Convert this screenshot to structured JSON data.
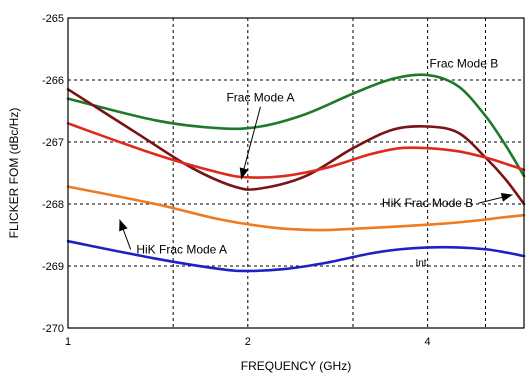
{
  "chart_data": {
    "type": "line",
    "title": "",
    "xlabel": "FREQUENCY (GHz)",
    "ylabel": "FLICKER FOM (dBc/Hz)",
    "x_ticks": [
      {
        "label": "1",
        "value": 1
      },
      {
        "label": "2",
        "value": 2
      },
      {
        "label": "4",
        "value": 4
      }
    ],
    "xlim": [
      1,
      5.8
    ],
    "y_ticks": [
      {
        "label": "-265",
        "value": -265
      },
      {
        "label": "-266",
        "value": -266
      },
      {
        "label": "-267",
        "value": -267
      },
      {
        "label": "-268",
        "value": -268
      },
      {
        "label": "-269",
        "value": -269
      },
      {
        "label": "-270",
        "value": -270
      }
    ],
    "ylim": [
      -270,
      -265
    ],
    "grid": true,
    "series": [
      {
        "name": "Frac Mode B",
        "color": "#1e7a2a",
        "x": [
          1.0,
          1.4,
          1.8,
          2.1,
          2.5,
          3.0,
          3.5,
          4.0,
          4.5,
          5.0,
          5.4,
          5.8
        ],
        "y": [
          -266.3,
          -266.65,
          -266.78,
          -266.75,
          -266.55,
          -266.22,
          -265.98,
          -265.92,
          -266.1,
          -266.58,
          -267.05,
          -267.55
        ]
      },
      {
        "name": "",
        "color": "#7a1414",
        "x": [
          1.0,
          1.3,
          1.6,
          1.9,
          2.1,
          2.5,
          3.0,
          3.5,
          4.0,
          4.5,
          5.0,
          5.4,
          5.8
        ],
        "y": [
          -266.15,
          -266.85,
          -267.4,
          -267.72,
          -267.75,
          -267.55,
          -267.1,
          -266.8,
          -266.75,
          -266.85,
          -267.25,
          -267.6,
          -268.0
        ]
      },
      {
        "name": "Frac Mode A",
        "color": "#dd2a1c",
        "x": [
          1.0,
          1.4,
          1.8,
          2.0,
          2.3,
          2.7,
          3.2,
          3.6,
          4.0,
          4.5,
          5.0,
          5.4,
          5.8
        ],
        "y": [
          -266.7,
          -267.2,
          -267.5,
          -267.57,
          -267.55,
          -267.42,
          -267.2,
          -267.1,
          -267.1,
          -267.15,
          -267.25,
          -267.35,
          -267.45
        ]
      },
      {
        "name": "HiK Frac Mode B",
        "color": "#ee7b22",
        "x": [
          1.0,
          1.4,
          1.8,
          2.2,
          2.6,
          3.0,
          3.6,
          4.2,
          4.8,
          5.3,
          5.8
        ],
        "y": [
          -267.72,
          -268.0,
          -268.25,
          -268.38,
          -268.42,
          -268.4,
          -268.36,
          -268.32,
          -268.27,
          -268.22,
          -268.18
        ]
      },
      {
        "name": "HiK Frac Mode A",
        "color": "#1c22c4",
        "x": [
          1.0,
          1.4,
          1.8,
          2.0,
          2.3,
          2.7,
          3.2,
          3.6,
          4.0,
          4.5,
          5.0,
          5.4,
          5.8
        ],
        "y": [
          -268.6,
          -268.88,
          -269.05,
          -269.08,
          -269.05,
          -268.95,
          -268.8,
          -268.73,
          -268.7,
          -268.7,
          -268.73,
          -268.78,
          -268.84
        ]
      }
    ],
    "annotations": [
      {
        "text": "Frac Mode A",
        "x": 2.1,
        "y": -266.35,
        "arrow_to": {
          "x": 1.95,
          "y": -267.6
        }
      },
      {
        "text": "Frac Mode B",
        "x": 4.6,
        "y": -265.8,
        "arrow_to": null
      },
      {
        "text": "HiK Frac Mode B",
        "x": 4.0,
        "y": -268.05,
        "arrow_to": {
          "x": 5.55,
          "y": -267.85
        }
      },
      {
        "text": "HiK Frac Mode A",
        "x": 1.55,
        "y": -268.8,
        "arrow_to": {
          "x": 1.22,
          "y": -268.25
        }
      },
      {
        "text": "Int",
        "x": 3.9,
        "y": -269.0,
        "arrow_to": null
      }
    ]
  }
}
